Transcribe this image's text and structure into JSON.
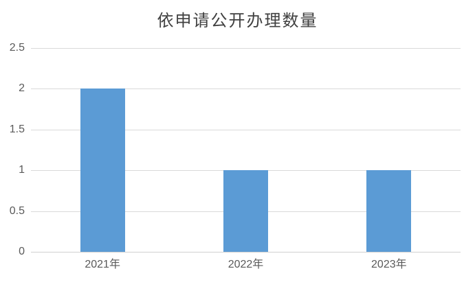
{
  "chart_data": {
    "type": "bar",
    "title": "依申请公开办理数量",
    "categories": [
      "2021年",
      "2022年",
      "2023年"
    ],
    "values": [
      2,
      1,
      1
    ],
    "xlabel": "",
    "ylabel": "",
    "ylim": [
      0,
      2.5
    ],
    "yticks": [
      0,
      0.5,
      1,
      1.5,
      2,
      2.5
    ],
    "ytick_labels": [
      "0",
      "0.5",
      "1",
      "1.5",
      "2",
      "2.5"
    ],
    "grid": true,
    "legend": false,
    "colors": {
      "bar": "#5B9BD5",
      "gridline": "#D9D9D9",
      "axis_line": "#CFCFCF",
      "tick_text": "#595959",
      "title_text": "#404040"
    }
  }
}
